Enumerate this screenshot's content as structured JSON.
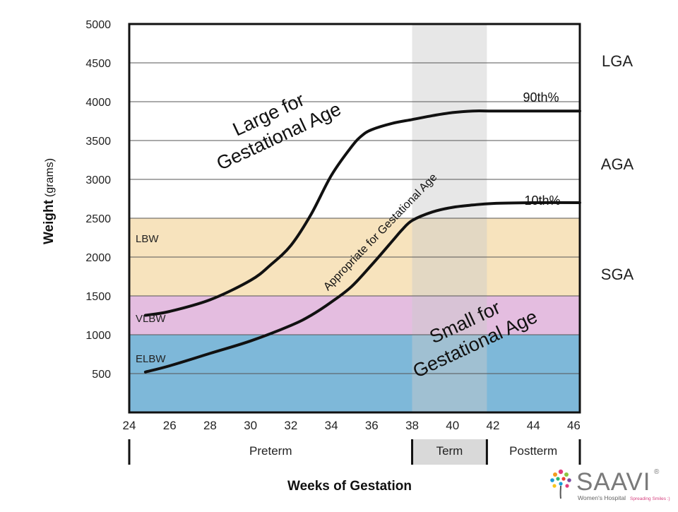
{
  "chart_data": {
    "type": "line",
    "xlabel": "Weeks of Gestation",
    "ylabel_bold": "Weight",
    "ylabel_unit": "(grams)",
    "xlim": [
      24,
      46.3
    ],
    "ylim": [
      0,
      5000
    ],
    "x_ticks": [
      "24",
      "26",
      "28",
      "30",
      "32",
      "34",
      "36",
      "38",
      "40",
      "42",
      "44",
      "46"
    ],
    "y_ticks": [
      "500",
      "1000",
      "1500",
      "2000",
      "2500",
      "3000",
      "3500",
      "4000",
      "4500",
      "5000"
    ],
    "grid": true,
    "term_band": [
      38,
      41.7
    ],
    "bands": [
      {
        "label": "LBW",
        "from": 1500,
        "to": 2500,
        "color": "#f7e3bd"
      },
      {
        "label": "VLBW",
        "from": 1000,
        "to": 1500,
        "color": "#e4bde0"
      },
      {
        "label": "ELBW",
        "from": 0,
        "to": 1000,
        "color": "#7eb8d9"
      }
    ],
    "series": [
      {
        "name": "90th%",
        "x": [
          24.8,
          26,
          28,
          30,
          31,
          32,
          33,
          34,
          35,
          35.5,
          36,
          37,
          38,
          39,
          40,
          41,
          42,
          44,
          46.3
        ],
        "y": [
          1250,
          1300,
          1450,
          1700,
          1900,
          2150,
          2550,
          3050,
          3420,
          3560,
          3640,
          3720,
          3770,
          3820,
          3860,
          3880,
          3880,
          3880,
          3880
        ]
      },
      {
        "name": "10th%",
        "x": [
          24.8,
          26,
          28,
          30,
          32,
          33,
          34,
          35,
          36,
          37,
          37.5,
          38,
          39,
          40,
          41,
          42,
          44,
          46.3
        ],
        "y": [
          520,
          600,
          760,
          920,
          1120,
          1250,
          1420,
          1620,
          1900,
          2200,
          2350,
          2470,
          2580,
          2640,
          2670,
          2690,
          2700,
          2700
        ]
      }
    ],
    "segments": [
      {
        "label": "Preterm",
        "from": 24,
        "to": 38
      },
      {
        "label": "Term",
        "from": 38,
        "to": 41.7
      },
      {
        "label": "Postterm",
        "from": 41.7,
        "to": 46.3
      }
    ],
    "right_labels": [
      "LGA",
      "AGA",
      "SGA"
    ],
    "region_labels": {
      "lga": [
        "Large for",
        "Gestational Age"
      ],
      "aga": "Appropriate for Gestational Age",
      "sga": [
        "Small for",
        "Gestational Age"
      ]
    }
  },
  "logo": {
    "name": "SAAVI",
    "registered": "®",
    "tagline": "Women's Hospital",
    "slogan": "Spreading Smiles :)"
  }
}
